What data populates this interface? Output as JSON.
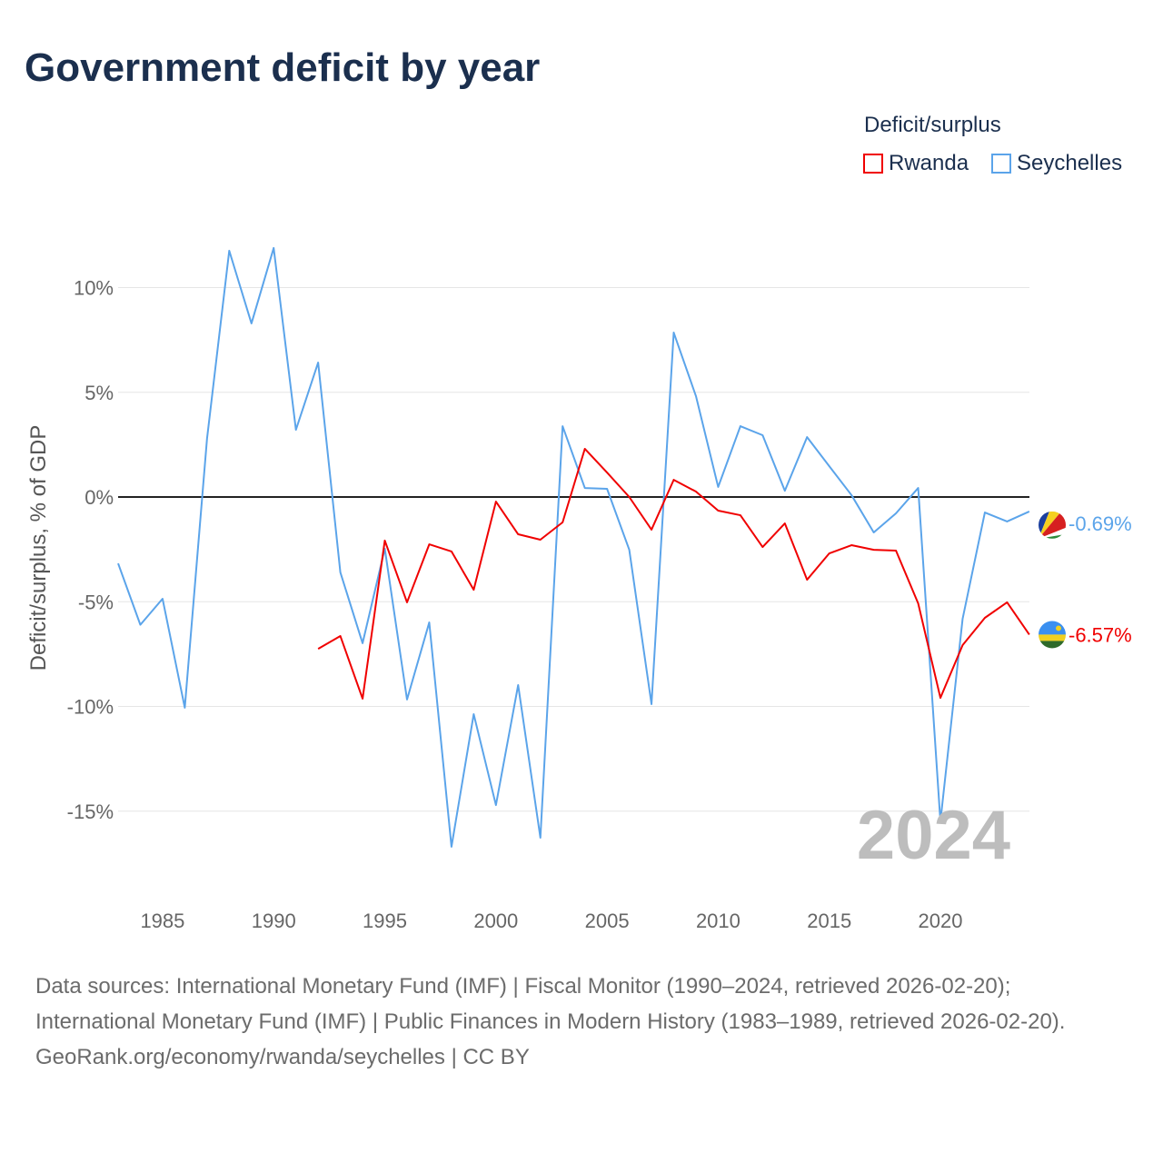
{
  "title": "Government deficit by year",
  "legend": {
    "title": "Deficit/surplus",
    "items": [
      "Rwanda",
      "Seychelles"
    ]
  },
  "sources": [
    "Data sources: International Monetary Fund (IMF) | Fiscal Monitor (1990–2024, retrieved 2026-02-20); International Monetary Fund (IMF) | Public Finances in Modern History (1983–1989, retrieved 2026-02-20).",
    "GeoRank.org/economy/rwanda/seychelles | CC BY"
  ],
  "chart_data": {
    "type": "line",
    "title": "Government deficit by year",
    "ylabel": "Deficit/surplus, % of GDP",
    "xlabel": "",
    "xlim": [
      1983,
      2024
    ],
    "ylim": [
      -18,
      15
    ],
    "year_label": "2024",
    "x_ticks": [
      1985,
      1990,
      1995,
      2000,
      2005,
      2010,
      2015,
      2020
    ],
    "y_ticks": [
      {
        "v": 10,
        "label": "10%"
      },
      {
        "v": 5,
        "label": "5%"
      },
      {
        "v": 0,
        "label": "0%"
      },
      {
        "v": -5,
        "label": "-5%"
      },
      {
        "v": -10,
        "label": "-10%"
      },
      {
        "v": -15,
        "label": "-15%"
      }
    ],
    "series": [
      {
        "name": "Seychelles",
        "color": "#5ba4ea",
        "end_label": "-0.69%",
        "flag": "seychelles-flag-icon",
        "start": 1983,
        "values": [
          -3.17,
          -6.1,
          -4.86,
          -10.06,
          2.78,
          11.76,
          8.29,
          11.89,
          3.21,
          6.42,
          -3.6,
          -6.98,
          -2.47,
          -9.67,
          -5.99,
          -16.7,
          -10.37,
          -14.71,
          -8.98,
          -16.27,
          3.38,
          0.43,
          0.39,
          -2.52,
          -9.89,
          7.85,
          4.82,
          0.48,
          3.38,
          2.95,
          0.3,
          2.86,
          1.47,
          0.09,
          -1.69,
          -0.78,
          0.43,
          -15.49,
          -5.81,
          -0.74,
          -1.17,
          -0.69
        ]
      },
      {
        "name": "Rwanda",
        "color": "#f00000",
        "end_label": "-6.57%",
        "flag": "rwanda-flag-icon",
        "start": 1992,
        "values": [
          -7.25,
          -6.64,
          -9.63,
          -2.08,
          -5.03,
          -2.26,
          -2.6,
          -4.43,
          -0.22,
          -1.78,
          -2.04,
          -1.21,
          2.3,
          1.17,
          0,
          -1.56,
          0.82,
          0.26,
          -0.65,
          -0.87,
          -2.39,
          -1.26,
          -3.95,
          -2.69,
          -2.3,
          -2.52,
          -2.56,
          -5.08,
          -9.59,
          -7.07,
          -5.77,
          -5.03,
          -6.57
        ]
      }
    ]
  }
}
